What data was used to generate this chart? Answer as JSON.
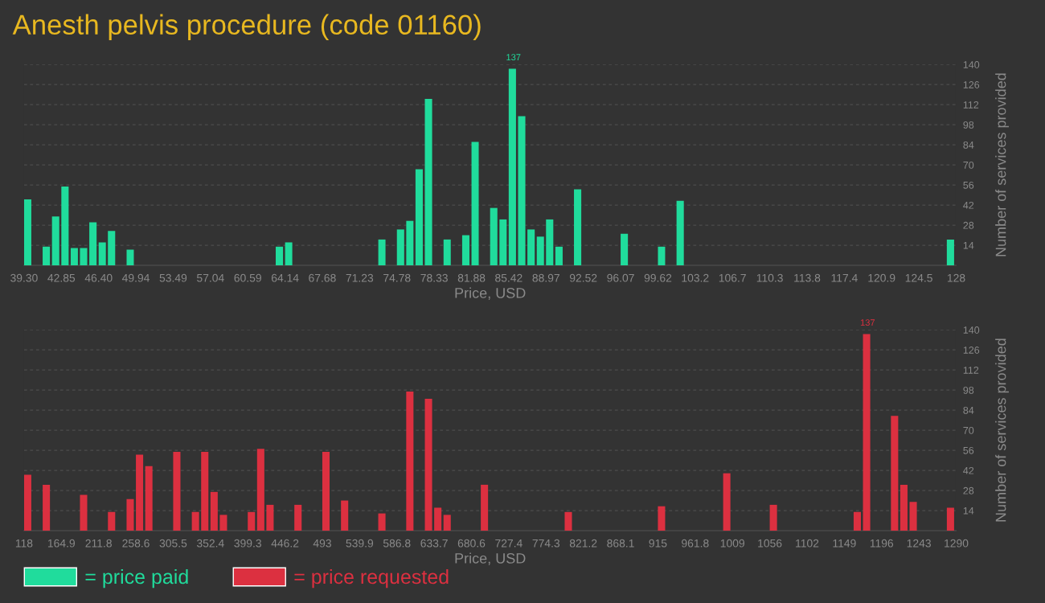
{
  "chart_data": [
    {
      "type": "histogram",
      "title": "Anesth pelvis procedure (code 01160)",
      "xlabel": "Price, USD",
      "ylabel": "Number of services provided",
      "bins": [
        39.3,
        40.19,
        41.07,
        41.96,
        42.85,
        43.74,
        44.62,
        45.51,
        46.4,
        47.28,
        48.17,
        49.06,
        49.94,
        50.83,
        51.72,
        52.61,
        53.49,
        54.38,
        55.27,
        56.15,
        57.04,
        57.93,
        58.81,
        59.7,
        60.59,
        61.48,
        62.36,
        63.25,
        64.14,
        65.02,
        65.91,
        66.8,
        67.68,
        68.57,
        69.46,
        70.35,
        71.23,
        72.12,
        73.01,
        73.89,
        74.78,
        75.67,
        76.55,
        77.44,
        78.33,
        79.22,
        80.1,
        80.99,
        81.88,
        82.76,
        83.65,
        84.54,
        85.42,
        86.31,
        87.2,
        88.09,
        88.97,
        89.86,
        90.75,
        91.63,
        92.52,
        93.41,
        94.29,
        95.18,
        96.07,
        96.96,
        97.84,
        98.73,
        99.62,
        100.5,
        101.39,
        102.28,
        103.16,
        104.05,
        104.94,
        105.83,
        106.71,
        107.6,
        108.49,
        109.37,
        110.26,
        111.15,
        112.03,
        112.92,
        113.81,
        114.7,
        115.58,
        116.47,
        117.36,
        118.24,
        119.13,
        120.02,
        120.9,
        121.79,
        122.68,
        123.57,
        124.45,
        125.34,
        126.23,
        127.11,
        128
      ],
      "series": [
        {
          "name": "= price paid",
          "color": "#20dc9c",
          "values": [
            46,
            0,
            13,
            34,
            55,
            12,
            12,
            30,
            16,
            24,
            0,
            11,
            0,
            0,
            0,
            0,
            0,
            0,
            0,
            0,
            0,
            0,
            0,
            0,
            0,
            0,
            0,
            13,
            16,
            0,
            0,
            0,
            0,
            0,
            0,
            0,
            0,
            0,
            18,
            0,
            25,
            31,
            67,
            116,
            0,
            18,
            0,
            21,
            86,
            0,
            40,
            32,
            137,
            104,
            25,
            20,
            32,
            13,
            0,
            53,
            0,
            0,
            0,
            0,
            22,
            0,
            0,
            0,
            13,
            0,
            45,
            0,
            0,
            0,
            0,
            0,
            0,
            0,
            0,
            0,
            0,
            0,
            0,
            0,
            0,
            0,
            0,
            0,
            0,
            0,
            0,
            0,
            0,
            0,
            0,
            0,
            0,
            0,
            0,
            18
          ]
        }
      ],
      "xlim": [
        39.3,
        128
      ],
      "xticks": [
        {
          "value": 39.3,
          "label": "39.30"
        },
        {
          "value": 42.85,
          "label": "42.85"
        },
        {
          "value": 46.4,
          "label": "46.40"
        },
        {
          "value": 49.94,
          "label": "49.94"
        },
        {
          "value": 53.49,
          "label": "53.49"
        },
        {
          "value": 57.04,
          "label": "57.04"
        },
        {
          "value": 60.59,
          "label": "60.59"
        },
        {
          "value": 64.14,
          "label": "64.14"
        },
        {
          "value": 67.68,
          "label": "67.68"
        },
        {
          "value": 71.23,
          "label": "71.23"
        },
        {
          "value": 74.78,
          "label": "74.78"
        },
        {
          "value": 78.33,
          "label": "78.33"
        },
        {
          "value": 81.88,
          "label": "81.88"
        },
        {
          "value": 85.42,
          "label": "85.42"
        },
        {
          "value": 88.97,
          "label": "88.97"
        },
        {
          "value": 92.52,
          "label": "92.52"
        },
        {
          "value": 96.07,
          "label": "96.07"
        },
        {
          "value": 99.62,
          "label": "99.62"
        },
        {
          "value": 103.16,
          "label": "103.2"
        },
        {
          "value": 106.71,
          "label": "106.7"
        },
        {
          "value": 110.26,
          "label": "110.3"
        },
        {
          "value": 113.81,
          "label": "113.8"
        },
        {
          "value": 117.36,
          "label": "117.4"
        },
        {
          "value": 120.9,
          "label": "120.9"
        },
        {
          "value": 124.45,
          "label": "124.5"
        },
        128
      ],
      "ylim": [
        0,
        140
      ],
      "yticks": [
        14,
        28,
        42,
        56,
        70,
        84,
        98,
        112,
        126,
        140
      ],
      "grid": "y",
      "legend": "bottom left",
      "annotations": [
        {
          "text": "137",
          "x": 85.87,
          "y": 137
        }
      ]
    },
    {
      "type": "histogram",
      "xlabel": "Price, USD",
      "ylabel": "Number of services provided",
      "bins": [
        118,
        129.72,
        141.44,
        153.16,
        164.88,
        176.6,
        188.32,
        200.04,
        211.76,
        223.48,
        235.2,
        246.92,
        258.64,
        270.36,
        282.08,
        293.8,
        305.52,
        317.24,
        328.96,
        340.68,
        352.4,
        364.12,
        375.84,
        387.56,
        399.28,
        411,
        422.72,
        434.44,
        446.16,
        457.88,
        469.6,
        481.32,
        493.04,
        504.76,
        516.48,
        528.2,
        539.92,
        551.64,
        563.36,
        575.08,
        586.8,
        598.52,
        610.24,
        621.96,
        633.68,
        645.4,
        657.12,
        668.84,
        680.56,
        692.28,
        704,
        715.72,
        727.44,
        739.16,
        750.88,
        762.6,
        774.32,
        786.04,
        797.76,
        809.48,
        821.2,
        832.92,
        844.64,
        856.36,
        868.08,
        879.8,
        891.52,
        903.24,
        914.96,
        926.68,
        938.4,
        950.12,
        961.84,
        973.56,
        985.28,
        997,
        1008.72,
        1020.44,
        1032.16,
        1043.88,
        1055.6,
        1067.32,
        1079.04,
        1090.76,
        1102.48,
        1114.2,
        1125.92,
        1137.64,
        1149.36,
        1161.08,
        1172.8,
        1184.52,
        1196.24,
        1207.96,
        1219.68,
        1231.4,
        1243.12,
        1254.84,
        1266.56,
        1278.28,
        1290
      ],
      "series": [
        {
          "name": "= price requested",
          "color": "#dc3040",
          "values": [
            39,
            0,
            32,
            0,
            0,
            0,
            25,
            0,
            0,
            13,
            0,
            22,
            53,
            45,
            0,
            0,
            55,
            0,
            13,
            55,
            27,
            11,
            0,
            0,
            13,
            57,
            18,
            0,
            0,
            18,
            0,
            0,
            55,
            0,
            21,
            0,
            0,
            0,
            12,
            0,
            0,
            97,
            0,
            92,
            16,
            11,
            0,
            0,
            0,
            32,
            0,
            0,
            0,
            0,
            0,
            0,
            0,
            0,
            13,
            0,
            0,
            0,
            0,
            0,
            0,
            0,
            0,
            0,
            17,
            0,
            0,
            0,
            0,
            0,
            0,
            40,
            0,
            0,
            0,
            0,
            18,
            0,
            0,
            0,
            0,
            0,
            0,
            0,
            0,
            13,
            137,
            0,
            0,
            80,
            32,
            20,
            0,
            0,
            0,
            16
          ]
        }
      ],
      "xlim": [
        118,
        1290
      ],
      "xticks": [
        118,
        {
          "value": 164.88,
          "label": "164.9"
        },
        {
          "value": 211.76,
          "label": "211.8"
        },
        {
          "value": 258.64,
          "label": "258.6"
        },
        {
          "value": 305.52,
          "label": "305.5"
        },
        {
          "value": 352.4,
          "label": "352.4"
        },
        {
          "value": 399.28,
          "label": "399.3"
        },
        {
          "value": 446.16,
          "label": "446.2"
        },
        {
          "value": 493.04,
          "label": "493"
        },
        {
          "value": 539.92,
          "label": "539.9"
        },
        {
          "value": 586.8,
          "label": "586.8"
        },
        {
          "value": 633.68,
          "label": "633.7"
        },
        {
          "value": 680.56,
          "label": "680.6"
        },
        {
          "value": 727.44,
          "label": "727.4"
        },
        {
          "value": 774.32,
          "label": "774.3"
        },
        {
          "value": 821.2,
          "label": "821.2"
        },
        {
          "value": 868.08,
          "label": "868.1"
        },
        {
          "value": 914.96,
          "label": "915"
        },
        {
          "value": 961.84,
          "label": "961.8"
        },
        {
          "value": 1008.72,
          "label": "1009"
        },
        {
          "value": 1055.6,
          "label": "1056"
        },
        {
          "value": 1102.48,
          "label": "1102"
        },
        {
          "value": 1149.36,
          "label": "1149"
        },
        {
          "value": 1196.24,
          "label": "1196"
        },
        {
          "value": 1243.12,
          "label": "1243"
        },
        1290
      ],
      "ylim": [
        0,
        140
      ],
      "yticks": [
        14,
        28,
        42,
        56,
        70,
        84,
        98,
        112,
        126,
        140
      ],
      "grid": "y",
      "legend": "bottom left",
      "annotations": [
        {
          "text": "137",
          "x": 1178.66,
          "y": 137
        }
      ]
    }
  ]
}
